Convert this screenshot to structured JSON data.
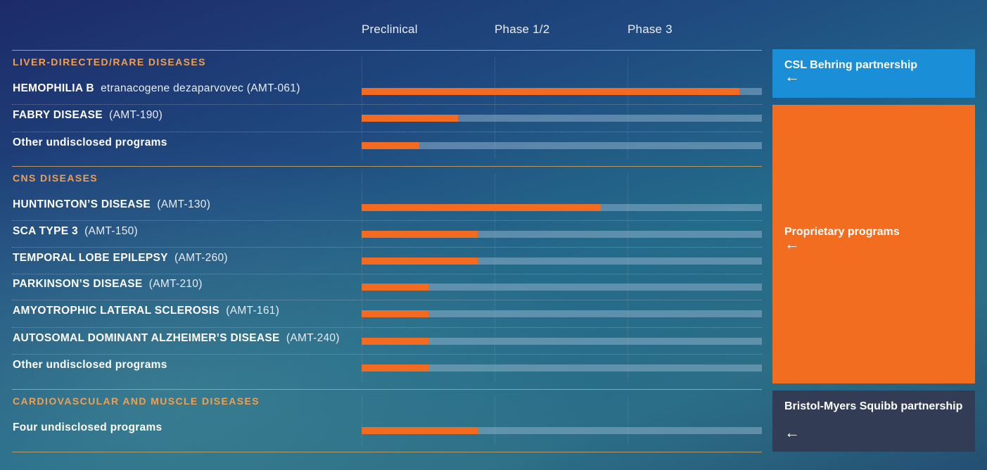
{
  "chart_data": {
    "type": "bar",
    "orientation": "horizontal",
    "x_categories": [
      "Preclinical",
      "Phase 1/2",
      "Phase 3"
    ],
    "x_range": [
      0,
      3
    ],
    "groups": [
      {
        "category": "LIVER-DIRECTED/RARE DISEASES",
        "programs": [
          {
            "name": "HEMOPHILIA B",
            "detail": "etranacogene dezaparvovec (AMT-061)",
            "progress": 2.83
          },
          {
            "name": "FABRY DISEASE",
            "detail": "(AMT-190)",
            "progress": 0.72
          },
          {
            "name": "Other undisclosed programs",
            "detail": "",
            "progress": 0.43
          }
        ]
      },
      {
        "category": "CNS DISEASES",
        "programs": [
          {
            "name": "HUNTINGTON’S DISEASE",
            "detail": "(AMT-130)",
            "progress": 1.79
          },
          {
            "name": "SCA TYPE 3",
            "detail": "(AMT-150)",
            "progress": 0.87
          },
          {
            "name": "TEMPORAL LOBE EPILEPSY",
            "detail": "(AMT-260)",
            "progress": 0.87
          },
          {
            "name": "PARKINSON’S DISEASE",
            "detail": "(AMT-210)",
            "progress": 0.5
          },
          {
            "name": "AMYOTROPHIC LATERAL SCLEROSIS",
            "detail": "(AMT-161)",
            "progress": 0.5
          },
          {
            "name": "AUTOSOMAL DOMINANT ALZHEIMER’S DISEASE",
            "detail": "(AMT-240)",
            "progress": 0.5
          },
          {
            "name": "Other undisclosed programs",
            "detail": "",
            "progress": 0.5
          }
        ]
      },
      {
        "category": "CARDIOVASCULAR AND MUSCLE DISEASES",
        "programs": [
          {
            "name": "Four undisclosed programs",
            "detail": "",
            "progress": 0.87
          }
        ]
      }
    ],
    "colors": {
      "bar": "#f26b21",
      "track": "#7ea3bc",
      "category": "#f0a050",
      "rule": "#b59b63"
    }
  },
  "partnerships": [
    {
      "title": "CSL Behring partnership",
      "color": "#1a8fd8",
      "icon": "arrow-left-icon"
    },
    {
      "title": "Proprietary programs",
      "color": "#f36d21",
      "icon": "arrow-left-icon"
    },
    {
      "title": "Bristol-Myers Squibb partnership",
      "color": "#323c55",
      "icon": "arrow-left-icon"
    }
  ],
  "arrow_glyph": "←"
}
